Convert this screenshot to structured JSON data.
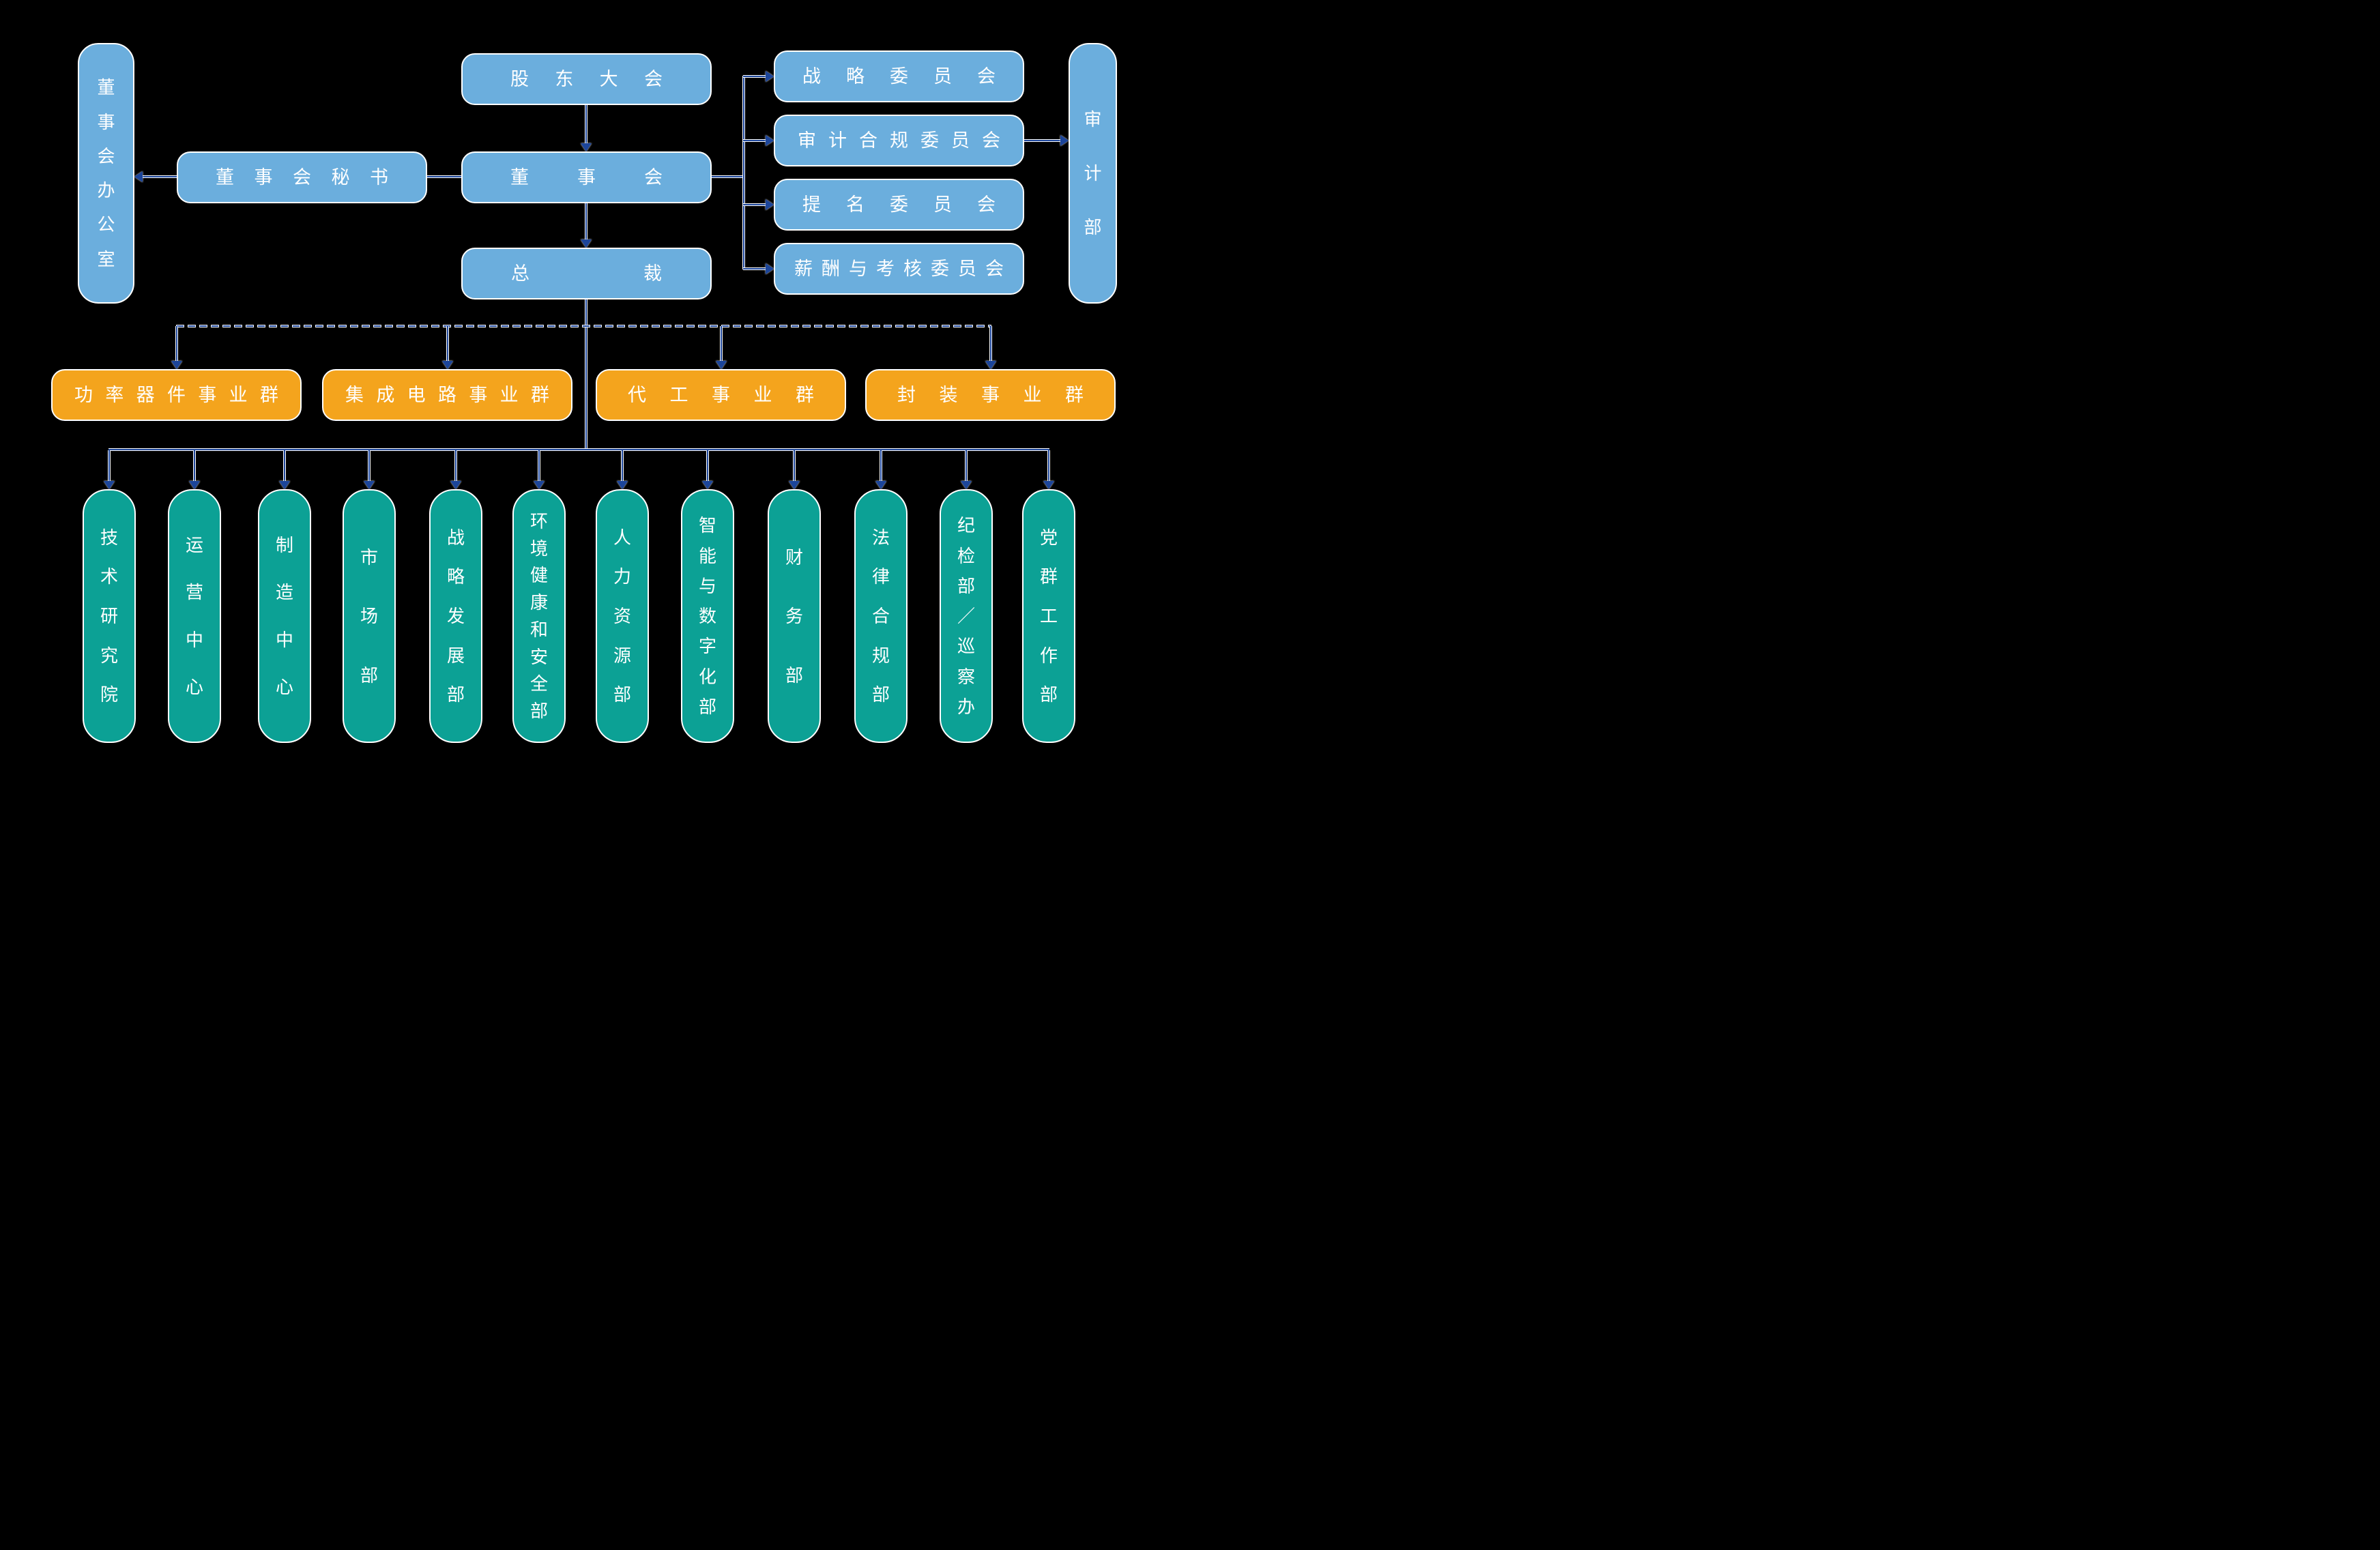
{
  "colors": {
    "blue": "#6BAEDD",
    "orange": "#F4A41D",
    "teal": "#0CA195",
    "navy": "#1C459A",
    "background": "#000000",
    "text": "#FFFFFF"
  },
  "nodes": {
    "shareholders_meeting": "股东大会",
    "board": "董事会",
    "president": "总裁",
    "board_secretary": "董事会秘书",
    "board_office": "董事会办公室",
    "audit_department": "审计部",
    "committees": [
      "战略委员会",
      "审计合规委员会",
      "提名委员会",
      "薪酬与考核委员会"
    ],
    "business_groups": [
      "功率器件事业群",
      "集成电路事业群",
      "代工事业群",
      "封装事业群"
    ],
    "departments": [
      "技术研究院",
      "运营中心",
      "制造中心",
      "市场部",
      "战略发展部",
      "环境健康和安全部",
      "人力资源部",
      "智能与数字化部",
      "财务部",
      "法律合规部",
      "纪检部／巡察办",
      "党群工作部"
    ]
  }
}
